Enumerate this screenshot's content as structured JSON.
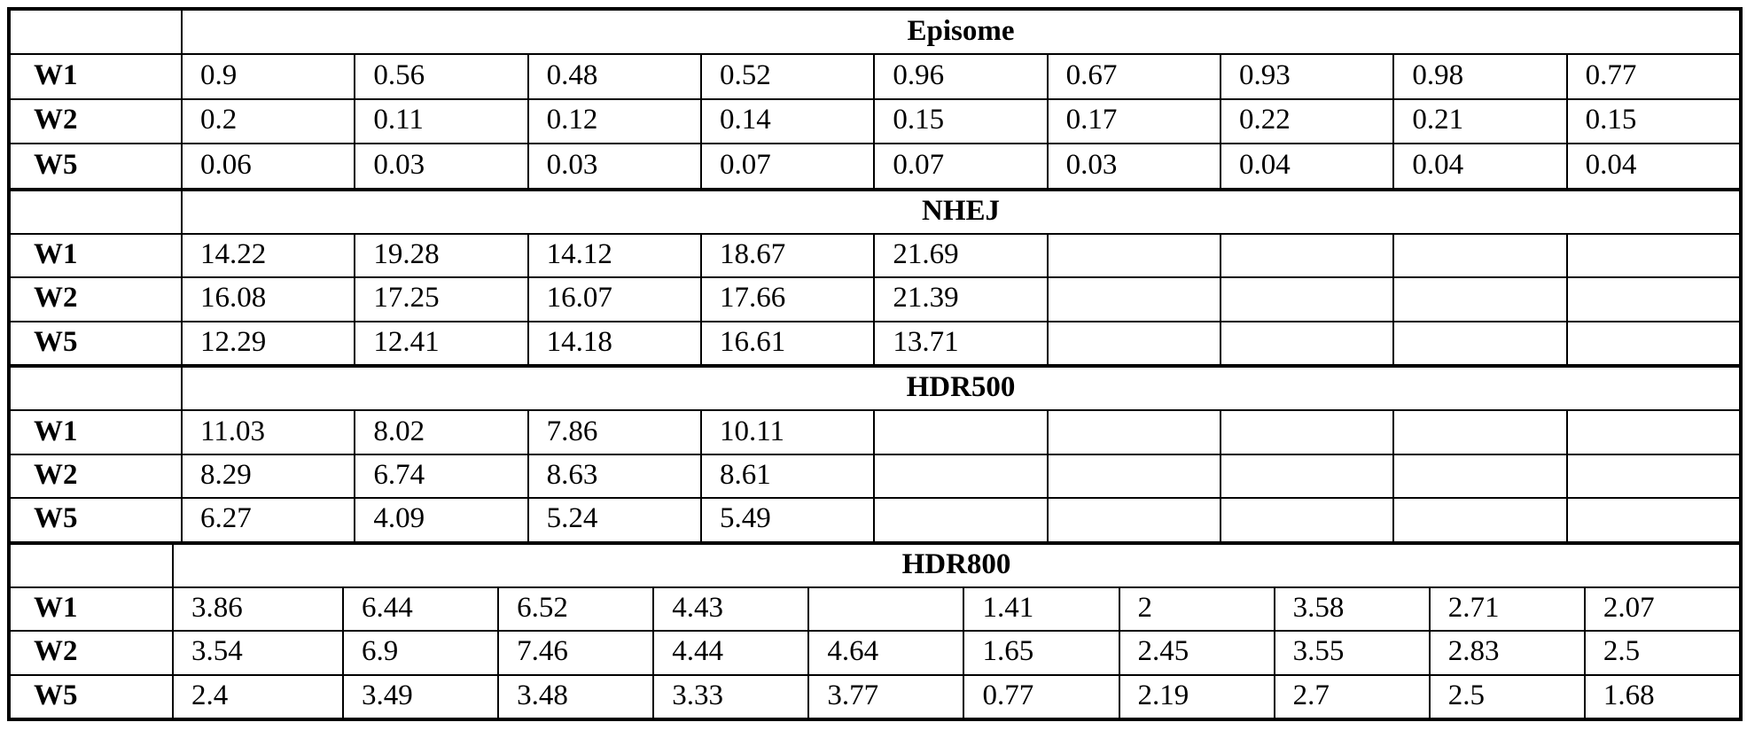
{
  "table": {
    "colors": {
      "border": "#000000",
      "background": "#ffffff",
      "text": "#000000"
    },
    "sections": [
      {
        "header": "Episome",
        "rows": [
          {
            "label": "W1",
            "values": [
              "0.9",
              "0.56",
              "0.48",
              "0.52",
              "0.96",
              "0.67",
              "0.93",
              "0.98",
              "0.77"
            ]
          },
          {
            "label": "W2",
            "values": [
              "0.2",
              "0.11",
              "0.12",
              "0.14",
              "0.15",
              "0.17",
              "0.22",
              "0.21",
              "0.15"
            ]
          },
          {
            "label": "W5",
            "values": [
              "0.06",
              "0.03",
              "0.03",
              "0.07",
              "0.07",
              "0.03",
              "0.04",
              "0.04",
              "0.04"
            ]
          }
        ]
      },
      {
        "header": "NHEJ",
        "rows": [
          {
            "label": "W1",
            "values": [
              "14.22",
              "19.28",
              "14.12",
              "18.67",
              "21.69",
              "",
              "",
              "",
              ""
            ]
          },
          {
            "label": "W2",
            "values": [
              "16.08",
              "17.25",
              "16.07",
              "17.66",
              "21.39",
              "",
              "",
              "",
              ""
            ]
          },
          {
            "label": "W5",
            "values": [
              "12.29",
              "12.41",
              "14.18",
              "16.61",
              "13.71",
              "",
              "",
              "",
              ""
            ]
          }
        ]
      },
      {
        "header": "HDR500",
        "rows": [
          {
            "label": "W1",
            "values": [
              "11.03",
              "8.02",
              "7.86",
              "10.11",
              "",
              "",
              "",
              "",
              ""
            ]
          },
          {
            "label": "W2",
            "values": [
              "8.29",
              "6.74",
              "8.63",
              "8.61",
              "",
              "",
              "",
              "",
              ""
            ]
          },
          {
            "label": "W5",
            "values": [
              "6.27",
              "4.09",
              "5.24",
              "5.49",
              "",
              "",
              "",
              "",
              ""
            ]
          }
        ]
      },
      {
        "header": "HDR800",
        "rows": [
          {
            "label": "W1",
            "values": [
              "3.86",
              "6.44",
              "6.52",
              "4.43",
              "",
              "1.41",
              "2",
              "3.58",
              "2.71",
              "2.07"
            ]
          },
          {
            "label": "W2",
            "values": [
              "3.54",
              "6.9",
              "7.46",
              "4.44",
              "4.64",
              "1.65",
              "2.45",
              "3.55",
              "2.83",
              "2.5"
            ]
          },
          {
            "label": "W5",
            "values": [
              "2.4",
              "3.49",
              "3.48",
              "3.33",
              "3.77",
              "0.77",
              "2.19",
              "2.7",
              "2.5",
              "1.68"
            ]
          }
        ]
      }
    ]
  }
}
